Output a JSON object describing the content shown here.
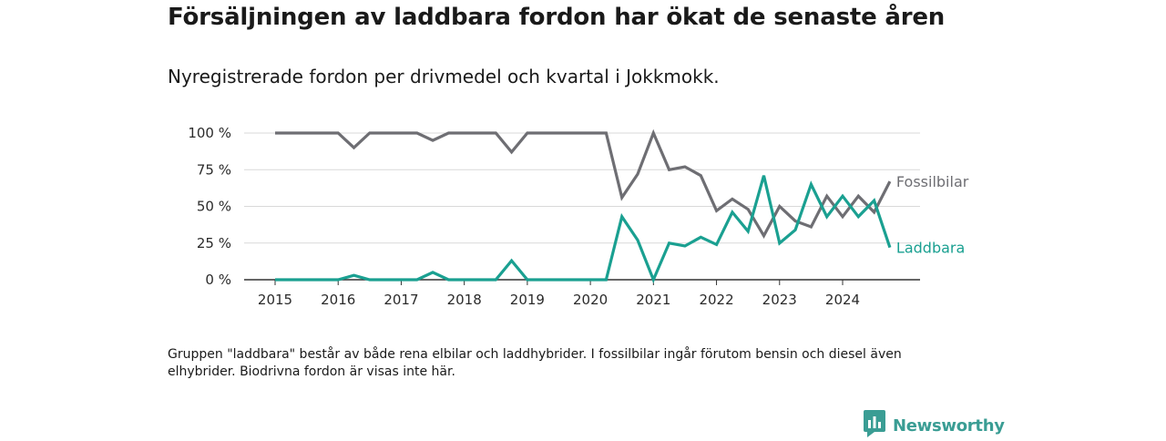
{
  "title": "Försäljningen av laddbara fordon har ökat de senaste åren",
  "subtitle": "Nyregistrerade fordon per drivmedel och kvartal i Jokkmokk.",
  "note": "Gruppen \"laddbara\" består av både rena elbilar och laddhybrider. I fossilbilar ingår förutom bensin och diesel även elhybrider. Biodrivna fordon är visas inte här.",
  "brand": "Newsworthy",
  "chart_data": {
    "type": "line",
    "x_start": 2015.0,
    "x_step": 0.25,
    "x_ticks": [
      2015,
      2016,
      2017,
      2018,
      2019,
      2020,
      2021,
      2022,
      2023,
      2024
    ],
    "y_ticks": [
      0,
      25,
      50,
      75,
      100
    ],
    "y_tick_labels": [
      "0 %",
      "25 %",
      "50 %",
      "75 %",
      "100 %"
    ],
    "xlim": [
      2014.5,
      2025.0
    ],
    "ylim": [
      0,
      100
    ],
    "grid": "horizontal",
    "series": [
      {
        "name": "Fossilbilar",
        "color": "#6e6e73",
        "values": [
          100,
          100,
          100,
          100,
          100,
          90,
          100,
          100,
          100,
          100,
          95,
          100,
          100,
          100,
          100,
          87,
          100,
          100,
          100,
          100,
          100,
          100,
          56,
          72,
          100,
          75,
          77,
          71,
          47,
          55,
          48,
          30,
          50,
          40,
          36,
          57,
          43,
          57,
          46,
          67
        ]
      },
      {
        "name": "Laddbara",
        "color": "#1aa091",
        "values": [
          0,
          0,
          0,
          0,
          0,
          3,
          0,
          0,
          0,
          0,
          5,
          0,
          0,
          0,
          0,
          13,
          0,
          0,
          0,
          0,
          0,
          0,
          43,
          27,
          0,
          25,
          23,
          29,
          24,
          46,
          33,
          71,
          25,
          34,
          65,
          43,
          57,
          43,
          54,
          22
        ]
      }
    ]
  }
}
